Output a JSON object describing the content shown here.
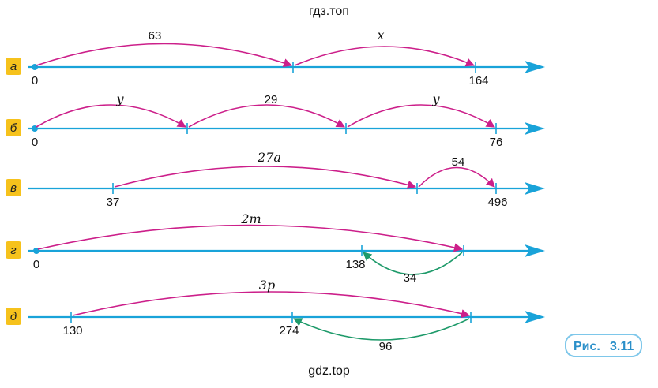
{
  "watermark_top": "гдз.топ",
  "watermark_bottom": "gdz.top",
  "caption": {
    "prefix": "Рис.",
    "number": "3.11"
  },
  "colors": {
    "axis": "#19a3d9",
    "forward_arc": "#cc1f8a",
    "back_arc": "#1e9a6a",
    "badge": "#f6c21c",
    "caption_border": "#7ec7ea",
    "caption_text": "#2a8fc9"
  },
  "rows": [
    {
      "letter": "а",
      "points": [
        {
          "label": "0",
          "dot": true
        },
        {
          "label": ""
        },
        {
          "label": "164"
        }
      ],
      "arcs": [
        {
          "label": "63",
          "italic": false
        },
        {
          "label": "x",
          "italic": true
        }
      ]
    },
    {
      "letter": "б",
      "points": [
        {
          "label": "0",
          "dot": true
        },
        {
          "label": ""
        },
        {
          "label": ""
        },
        {
          "label": "76"
        }
      ],
      "arcs": [
        {
          "label": "y",
          "italic": true
        },
        {
          "label": "29",
          "italic": false
        },
        {
          "label": "y",
          "italic": true
        }
      ]
    },
    {
      "letter": "в",
      "points": [
        {
          "label": "37"
        },
        {
          "label": ""
        },
        {
          "label": "496"
        }
      ],
      "arcs": [
        {
          "label": "27a",
          "italic": true
        },
        {
          "label": "54",
          "italic": false
        }
      ]
    },
    {
      "letter": "г",
      "points": [
        {
          "label": "0",
          "dot": true
        },
        {
          "label": "138"
        },
        {
          "label": ""
        }
      ],
      "arcs": [
        {
          "label": "2m",
          "italic": true
        },
        {
          "label": "34",
          "italic": false,
          "back": true
        }
      ]
    },
    {
      "letter": "д",
      "points": [
        {
          "label": "130"
        },
        {
          "label": "274"
        },
        {
          "label": ""
        }
      ],
      "arcs": [
        {
          "label": "3p",
          "italic": true
        },
        {
          "label": "96",
          "italic": false,
          "back": true
        }
      ]
    }
  ]
}
